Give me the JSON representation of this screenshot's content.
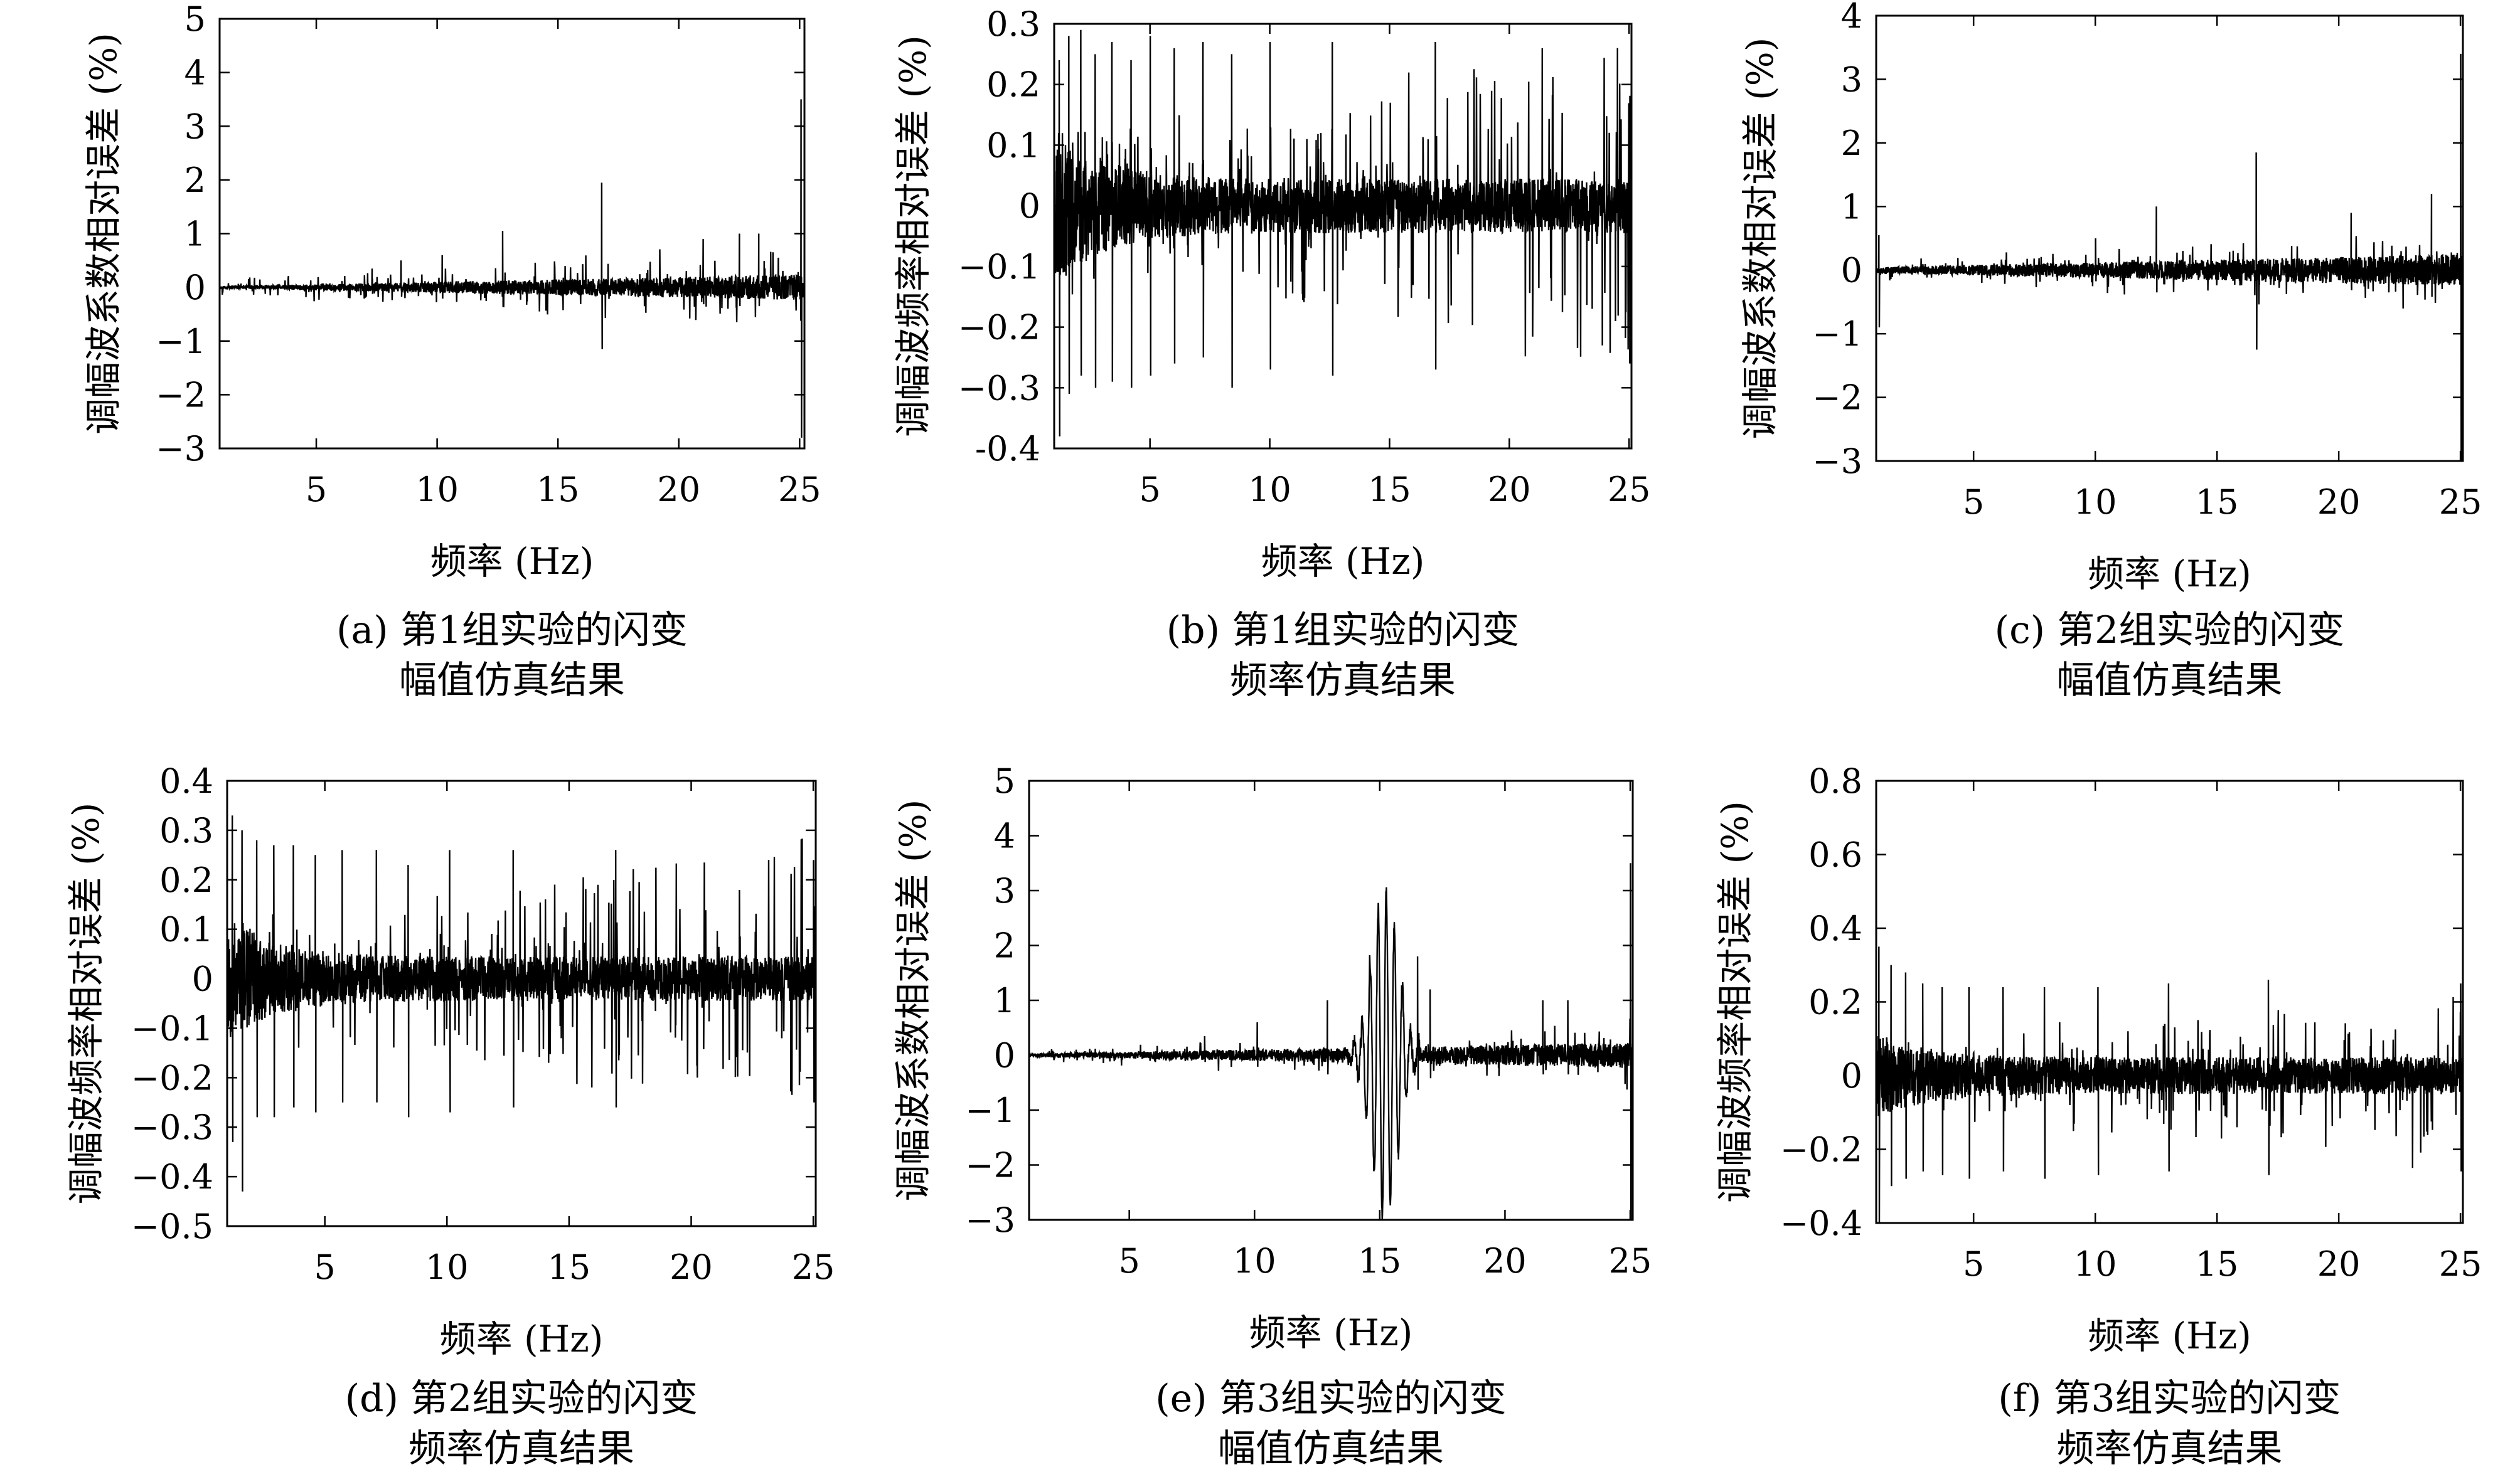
{
  "chart_data": [
    {
      "type": "line",
      "ylabel": "调幅波系数相对误差 (%)",
      "xlabel": "频率 (Hz)",
      "xlim": [
        1,
        25.2
      ],
      "ylim": [
        -3,
        5
      ],
      "xticks": [
        5,
        10,
        15,
        20,
        25
      ],
      "yticks": [
        -3,
        -2,
        -1,
        0,
        1,
        2,
        3,
        4,
        5
      ],
      "ytick_labels": [
        "−3",
        "−2",
        "−1",
        "0",
        "1",
        "2",
        "3",
        "4",
        "5"
      ],
      "caption": [
        "(a) 第1组实验的闪变",
        "幅值仿真结果"
      ],
      "noise": {
        "base": 0.02,
        "growth": 0.22,
        "spike_rate": 0.07,
        "spike_amp": 0.5,
        "seed": 11
      },
      "peaks": [
        {
          "x": 7.3,
          "y": 0.35
        },
        {
          "x": 8.5,
          "y": 0.5
        },
        {
          "x": 10.2,
          "y": 0.6
        },
        {
          "x": 12.7,
          "y": 1.05
        },
        {
          "x": 16.8,
          "y": 1.95,
          "neg": -1.15
        },
        {
          "x": 21.0,
          "y": 0.9
        },
        {
          "x": 22.5,
          "y": 1.0
        },
        {
          "x": 23.3,
          "y": 1.0
        },
        {
          "x": 25.05,
          "y": 3.5,
          "neg": -2.8
        }
      ]
    },
    {
      "type": "line",
      "ylabel": "调幅波频率相对误差 (%)",
      "xlabel": "频率 (Hz)",
      "xlim": [
        1,
        25.1
      ],
      "ylim": [
        -0.4,
        0.3
      ],
      "xticks": [
        5,
        10,
        15,
        20,
        25
      ],
      "yticks": [
        -0.4,
        -0.3,
        -0.2,
        -0.1,
        0,
        0.1,
        0.2,
        0.3
      ],
      "ytick_labels": [
        "-0.4",
        "−0.3",
        "−0.2",
        "−0.1",
        "0",
        "0.1",
        "0.2",
        "0.3"
      ],
      "caption": [
        "(b) 第1组实验的闪变",
        "频率仿真结果"
      ],
      "noise": {
        "base": 0.09,
        "decay": 0.045,
        "spike_rate": 0.09,
        "spike_amp": 0.22,
        "seed": 23
      },
      "peaks": [
        {
          "x": 1.2,
          "y": 0.24,
          "neg": -0.38
        },
        {
          "x": 1.6,
          "y": 0.28,
          "neg": -0.31
        },
        {
          "x": 2.1,
          "y": 0.29,
          "neg": -0.28
        },
        {
          "x": 2.7,
          "y": 0.25,
          "neg": -0.3
        },
        {
          "x": 3.4,
          "y": 0.27,
          "neg": -0.29
        },
        {
          "x": 4.2,
          "y": 0.24,
          "neg": -0.3
        },
        {
          "x": 5.0,
          "y": 0.28,
          "neg": -0.28
        },
        {
          "x": 6.0,
          "y": 0.26,
          "neg": -0.26
        },
        {
          "x": 7.2,
          "y": 0.27,
          "neg": -0.25
        },
        {
          "x": 8.4,
          "y": 0.25,
          "neg": -0.3
        },
        {
          "x": 10.0,
          "y": 0.27,
          "neg": -0.27
        },
        {
          "x": 12.6,
          "y": 0.27,
          "neg": -0.28
        },
        {
          "x": 16.9,
          "y": 0.27,
          "neg": -0.27
        },
        {
          "x": 25.0,
          "y": 0.07,
          "neg": -0.26
        }
      ]
    },
    {
      "type": "line",
      "ylabel": "调幅波系数相对误差 (%)",
      "xlabel": "频率 (Hz)",
      "xlim": [
        1,
        25.1
      ],
      "ylim": [
        -3,
        4
      ],
      "xticks": [
        5,
        10,
        15,
        20,
        25
      ],
      "yticks": [
        -3,
        -2,
        -1,
        0,
        1,
        2,
        3,
        4
      ],
      "ytick_labels": [
        "−3",
        "−2",
        "−1",
        "0",
        "1",
        "2",
        "3",
        "4"
      ],
      "caption": [
        "(c) 第2组实验的闪变",
        "幅值仿真结果"
      ],
      "noise": {
        "base": 0.05,
        "growth": 0.2,
        "spike_rate": 0.07,
        "spike_amp": 0.45,
        "seed": 37
      },
      "peaks": [
        {
          "x": 1.1,
          "y": 0.55,
          "neg": -0.9
        },
        {
          "x": 10.0,
          "y": 0.5
        },
        {
          "x": 12.5,
          "y": 1.0
        },
        {
          "x": 16.6,
          "y": 1.85,
          "neg": -1.25
        },
        {
          "x": 20.5,
          "y": 0.9
        },
        {
          "x": 23.8,
          "y": 1.2
        },
        {
          "x": 25.0,
          "y": 3.4,
          "neg": -3.0
        }
      ]
    },
    {
      "type": "line",
      "ylabel": "调幅波频率相对误差 (%)",
      "xlabel": "频率 (Hz)",
      "xlim": [
        1,
        25.1
      ],
      "ylim": [
        -0.5,
        0.4
      ],
      "xticks": [
        5,
        10,
        15,
        20,
        25
      ],
      "yticks": [
        -0.5,
        -0.4,
        -0.3,
        -0.2,
        -0.1,
        0,
        0.1,
        0.2,
        0.3,
        0.4
      ],
      "ytick_labels": [
        "−0.5",
        "−0.4",
        "−0.3",
        "−0.2",
        "−0.1",
        "0",
        "0.1",
        "0.2",
        "0.3",
        "0.4"
      ],
      "caption": [
        "(d) 第2组实验的闪变",
        "频率仿真结果"
      ],
      "noise": {
        "base": 0.08,
        "decay": 0.045,
        "spike_rate": 0.09,
        "spike_amp": 0.22,
        "seed": 53
      },
      "peaks": [
        {
          "x": 1.2,
          "y": 0.33,
          "neg": -0.33
        },
        {
          "x": 1.6,
          "y": 0.3,
          "neg": -0.43
        },
        {
          "x": 2.2,
          "y": 0.28,
          "neg": -0.28
        },
        {
          "x": 2.9,
          "y": 0.27,
          "neg": -0.28
        },
        {
          "x": 3.7,
          "y": 0.27,
          "neg": -0.26
        },
        {
          "x": 4.6,
          "y": 0.25,
          "neg": -0.27
        },
        {
          "x": 5.7,
          "y": 0.26,
          "neg": -0.25
        },
        {
          "x": 7.1,
          "y": 0.26,
          "neg": -0.25
        },
        {
          "x": 8.4,
          "y": 0.23,
          "neg": -0.28
        },
        {
          "x": 10.1,
          "y": 0.26,
          "neg": -0.27
        },
        {
          "x": 12.7,
          "y": 0.26,
          "neg": -0.26
        },
        {
          "x": 16.9,
          "y": 0.26,
          "neg": -0.26
        },
        {
          "x": 25.0,
          "y": 0.24,
          "neg": -0.25
        }
      ]
    },
    {
      "type": "line",
      "ylabel": "调幅波系数相对误差 (%)",
      "xlabel": "频率 (Hz)",
      "xlim": [
        1,
        25.1
      ],
      "ylim": [
        -3,
        5
      ],
      "xticks": [
        5,
        10,
        15,
        20,
        25
      ],
      "yticks": [
        -3,
        -2,
        -1,
        0,
        1,
        2,
        3,
        4,
        5
      ],
      "ytick_labels": [
        "−3",
        "−2",
        "−1",
        "0",
        "1",
        "2",
        "3",
        "4",
        "5"
      ],
      "caption": [
        "(e) 第3组实验的闪变",
        "幅值仿真结果"
      ],
      "noise": {
        "base": 0.03,
        "growth": 0.2,
        "spike_rate": 0.06,
        "spike_amp": 0.4,
        "seed": 71
      },
      "peaks": [
        {
          "x": 8.0,
          "y": 0.35
        },
        {
          "x": 10.1,
          "y": 0.6
        },
        {
          "x": 12.9,
          "y": 1.0
        },
        {
          "x": 16.5,
          "y": 1.8
        },
        {
          "x": 17.0,
          "y": 1.2
        },
        {
          "x": 21.5,
          "y": 1.0
        },
        {
          "x": 22.5,
          "y": 1.0
        },
        {
          "x": 25.0,
          "y": 3.5,
          "neg": -3.0
        }
      ],
      "oscillation": {
        "center": 15.2,
        "width": 0.75,
        "amplitude": 3.0,
        "freq": 3.1
      }
    },
    {
      "type": "line",
      "ylabel": "调幅波频率相对误差 (%)",
      "xlabel": "频率 (Hz)",
      "xlim": [
        1,
        25.1
      ],
      "ylim": [
        -0.4,
        0.8
      ],
      "xticks": [
        5,
        10,
        15,
        20,
        25
      ],
      "yticks": [
        -0.4,
        -0.2,
        0,
        0.2,
        0.4,
        0.6,
        0.8
      ],
      "ytick_labels": [
        "−0.4",
        "−0.2",
        "0",
        "0.2",
        "0.4",
        "0.6",
        "0.8"
      ],
      "caption": [
        "(f) 第3组实验的闪变",
        "频率仿真结果"
      ],
      "noise": {
        "base": 0.07,
        "decay": 0.05,
        "spike_rate": 0.08,
        "spike_amp": 0.17,
        "seed": 89
      },
      "peaks": [
        {
          "x": 1.1,
          "y": 0.35,
          "neg": -0.4
        },
        {
          "x": 1.6,
          "y": 0.3,
          "neg": -0.3
        },
        {
          "x": 2.2,
          "y": 0.28,
          "neg": -0.28
        },
        {
          "x": 2.9,
          "y": 0.25,
          "neg": -0.26
        },
        {
          "x": 3.7,
          "y": 0.24,
          "neg": -0.27
        },
        {
          "x": 4.8,
          "y": 0.24,
          "neg": -0.28
        },
        {
          "x": 6.2,
          "y": 0.24,
          "neg": -0.26
        },
        {
          "x": 7.9,
          "y": 0.24,
          "neg": -0.28
        },
        {
          "x": 10.1,
          "y": 0.24,
          "neg": -0.27
        },
        {
          "x": 13.0,
          "y": 0.25,
          "neg": -0.26
        },
        {
          "x": 17.1,
          "y": 0.26,
          "neg": -0.27
        },
        {
          "x": 25.0,
          "y": 0.25,
          "neg": -0.26
        }
      ]
    }
  ]
}
